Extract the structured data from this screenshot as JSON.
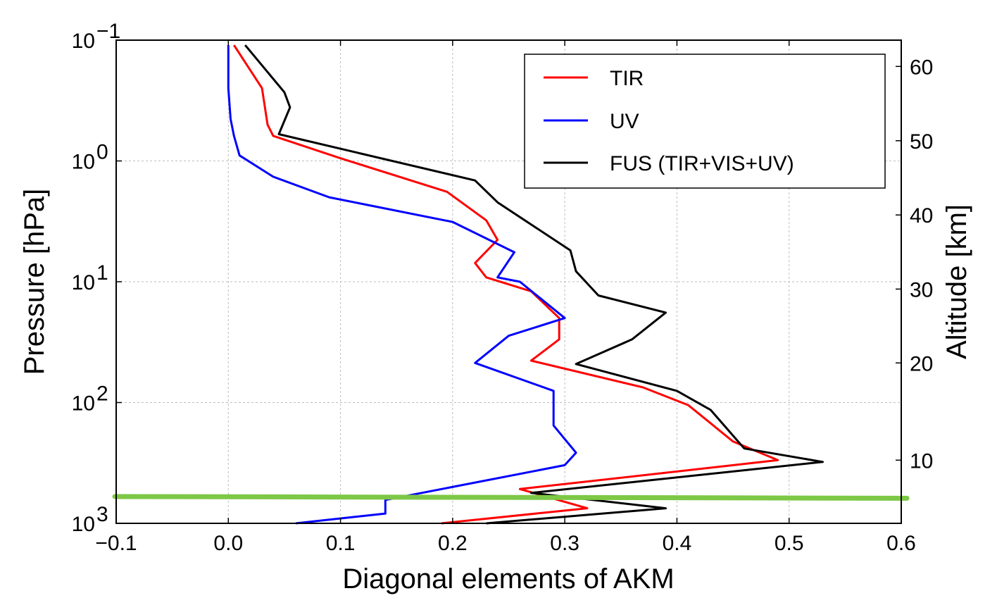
{
  "chart_data": {
    "type": "line",
    "xlabel": "Diagonal elements of AKM",
    "ylabel": "Pressure [hPa]",
    "y2label": "Altitude [km]",
    "xlim": [
      -0.1,
      0.6
    ],
    "x_ticks": [
      "−0.1",
      "0.0",
      "0.1",
      "0.2",
      "0.3",
      "0.4",
      "0.5",
      "0.6"
    ],
    "x_tick_values": [
      -0.1,
      0.0,
      0.1,
      0.2,
      0.3,
      0.4,
      0.5,
      0.6
    ],
    "y_scale": "log",
    "y_inverted": true,
    "ylim": [
      1000,
      0.1
    ],
    "y_ticks": [
      {
        "value": 0.1,
        "base": "10",
        "exp": "−1"
      },
      {
        "value": 1,
        "base": "10",
        "exp": "0"
      },
      {
        "value": 10,
        "base": "10",
        "exp": "1"
      },
      {
        "value": 100,
        "base": "10",
        "exp": "2"
      },
      {
        "value": 1000,
        "base": "10",
        "exp": "3"
      }
    ],
    "y2_ticks": [
      {
        "label": "10",
        "pressure": 300
      },
      {
        "label": "20",
        "pressure": 47
      },
      {
        "label": "30",
        "pressure": 11.5
      },
      {
        "label": "40",
        "pressure": 2.8
      },
      {
        "label": "50",
        "pressure": 0.68
      },
      {
        "label": "60",
        "pressure": 0.165
      }
    ],
    "grid": true,
    "legend_position": "top-right",
    "series": [
      {
        "name": "TIR",
        "color": "#ff0000",
        "points": [
          [
            0.19,
            1000
          ],
          [
            0.32,
            750
          ],
          [
            0.26,
            520
          ],
          [
            0.49,
            300
          ],
          [
            0.45,
            210
          ],
          [
            0.41,
            105
          ],
          [
            0.37,
            75
          ],
          [
            0.27,
            45
          ],
          [
            0.295,
            30
          ],
          [
            0.295,
            20
          ],
          [
            0.27,
            12
          ],
          [
            0.23,
            9.2
          ],
          [
            0.22,
            7
          ],
          [
            0.24,
            4.5
          ],
          [
            0.23,
            3.1
          ],
          [
            0.195,
            1.8
          ],
          [
            0.1,
            0.95
          ],
          [
            0.04,
            0.62
          ],
          [
            0.035,
            0.5
          ],
          [
            0.03,
            0.25
          ],
          [
            0.005,
            0.11
          ]
        ]
      },
      {
        "name": "UV",
        "color": "#0000ff",
        "points": [
          [
            0.06,
            1000
          ],
          [
            0.14,
            830
          ],
          [
            0.14,
            640
          ],
          [
            0.3,
            330
          ],
          [
            0.31,
            260
          ],
          [
            0.29,
            155
          ],
          [
            0.29,
            80
          ],
          [
            0.22,
            47
          ],
          [
            0.25,
            28
          ],
          [
            0.3,
            20
          ],
          [
            0.26,
            10
          ],
          [
            0.24,
            9.2
          ],
          [
            0.255,
            5.7
          ],
          [
            0.2,
            3.2
          ],
          [
            0.09,
            2
          ],
          [
            0.04,
            1.35
          ],
          [
            0.01,
            0.9
          ],
          [
            0.005,
            0.62
          ],
          [
            0.002,
            0.45
          ],
          [
            0.0,
            0.25
          ],
          [
            0.0,
            0.11
          ]
        ]
      },
      {
        "name": "FUS (TIR+VIS+UV)",
        "color": "#000000",
        "points": [
          [
            0.23,
            1000
          ],
          [
            0.39,
            750
          ],
          [
            0.27,
            560
          ],
          [
            0.53,
            310
          ],
          [
            0.46,
            240
          ],
          [
            0.43,
            115
          ],
          [
            0.4,
            80
          ],
          [
            0.31,
            48
          ],
          [
            0.36,
            30
          ],
          [
            0.39,
            18
          ],
          [
            0.33,
            13
          ],
          [
            0.31,
            8.2
          ],
          [
            0.305,
            5.5
          ],
          [
            0.24,
            2.2
          ],
          [
            0.22,
            1.45
          ],
          [
            0.045,
            0.6
          ],
          [
            0.055,
            0.36
          ],
          [
            0.05,
            0.27
          ],
          [
            0.015,
            0.11
          ]
        ]
      }
    ],
    "reference_line": {
      "color": "#7dc846",
      "x_start": -0.1,
      "x_end": 0.6,
      "p_start": 600,
      "p_end": 620
    }
  }
}
